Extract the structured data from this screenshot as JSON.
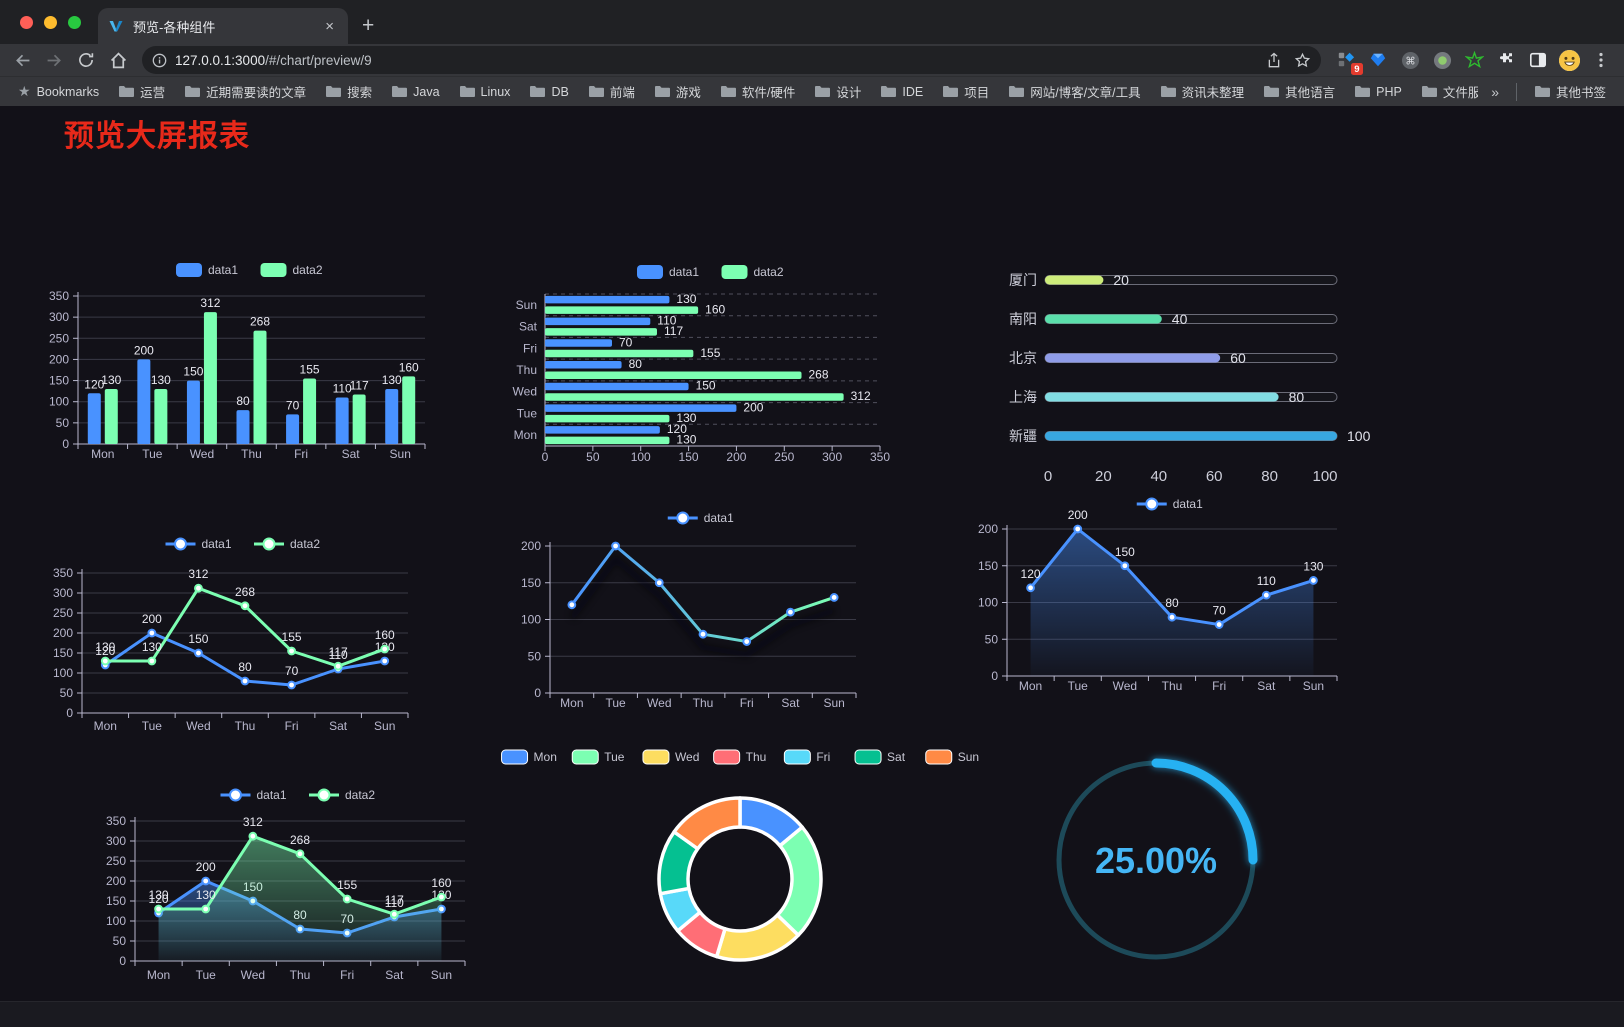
{
  "browser": {
    "tab_title": "预览-各种组件",
    "tab_close_glyph": "×",
    "new_tab_glyph": "+",
    "url_host": "127.0.0.1:3000",
    "url_path": "/#/chart/preview/9",
    "extension_badge": "9",
    "bookmarks_root_label": "Bookmarks",
    "bookmark_folders": [
      "运营",
      "近期需要读的文章",
      "搜索",
      "Java",
      "Linux",
      "DB",
      "前端",
      "游戏",
      "软件/硬件",
      "设计",
      "IDE",
      "项目",
      "网站/博客/文章/工具",
      "资讯未整理",
      "其他语言",
      "PHP",
      "文件服务器"
    ],
    "overflow_chevron": "»",
    "other_bookmarks_label": "其他书签"
  },
  "page": {
    "title": "预览大屏报表",
    "title_color": "#e8291a"
  },
  "chart_data": [
    {
      "id": "grouped-bar",
      "type": "bar",
      "categories": [
        "Mon",
        "Tue",
        "Wed",
        "Thu",
        "Fri",
        "Sat",
        "Sun"
      ],
      "series": [
        {
          "name": "data1",
          "color": "#4992ff",
          "values": [
            120,
            200,
            150,
            80,
            70,
            110,
            130
          ]
        },
        {
          "name": "data2",
          "color": "#7cffb2",
          "values": [
            130,
            130,
            312,
            268,
            155,
            117,
            160
          ]
        }
      ],
      "ylim": [
        0,
        350
      ],
      "ytick": 50,
      "value_labels": true,
      "legend_position": "top",
      "grid": true
    },
    {
      "id": "horizontal-bar",
      "type": "bar-horizontal",
      "categories": [
        "Mon",
        "Tue",
        "Wed",
        "Thu",
        "Fri",
        "Sat",
        "Sun"
      ],
      "series": [
        {
          "name": "data1",
          "color": "#4992ff",
          "values": [
            120,
            200,
            150,
            80,
            70,
            110,
            130
          ]
        },
        {
          "name": "data2",
          "color": "#7cffb2",
          "values": [
            130,
            130,
            312,
            268,
            155,
            117,
            160
          ]
        }
      ],
      "xlim": [
        0,
        350
      ],
      "xtick": 50,
      "value_labels": true,
      "legend_position": "top",
      "grid": true
    },
    {
      "id": "city-progress",
      "type": "progress-bars",
      "items": [
        {
          "label": "厦门",
          "value": 20,
          "color": "#cdec7a"
        },
        {
          "label": "南阳",
          "value": 40,
          "color": "#5bdfab"
        },
        {
          "label": "北京",
          "value": 60,
          "color": "#8f9ce8"
        },
        {
          "label": "上海",
          "value": 80,
          "color": "#82dde3"
        },
        {
          "label": "新疆",
          "value": 100,
          "color": "#38a7e0"
        }
      ],
      "xlim": [
        0,
        100
      ],
      "xticks": [
        0,
        20,
        40,
        60,
        80,
        100
      ]
    },
    {
      "id": "two-line",
      "type": "line",
      "categories": [
        "Mon",
        "Tue",
        "Wed",
        "Thu",
        "Fri",
        "Sat",
        "Sun"
      ],
      "series": [
        {
          "name": "data1",
          "color": "#4992ff",
          "values": [
            120,
            200,
            150,
            80,
            70,
            110,
            130
          ]
        },
        {
          "name": "data2",
          "color": "#7cffb2",
          "values": [
            130,
            130,
            312,
            268,
            155,
            117,
            160
          ]
        }
      ],
      "ylim": [
        0,
        350
      ],
      "ytick": 50,
      "value_labels": true,
      "legend_position": "top",
      "grid": true
    },
    {
      "id": "gradient-line",
      "type": "line",
      "categories": [
        "Mon",
        "Tue",
        "Wed",
        "Thu",
        "Fri",
        "Sat",
        "Sun"
      ],
      "series": [
        {
          "name": "data1",
          "color": "#4992ff",
          "gradient": [
            "#4992ff",
            "#7cffb2"
          ],
          "values": [
            120,
            200,
            150,
            80,
            70,
            110,
            130
          ],
          "shadow": true
        }
      ],
      "ylim": [
        0,
        200
      ],
      "ytick": 50,
      "value_labels": false,
      "legend_position": "top",
      "grid": true
    },
    {
      "id": "area-line",
      "type": "line",
      "categories": [
        "Mon",
        "Tue",
        "Wed",
        "Thu",
        "Fri",
        "Sat",
        "Sun"
      ],
      "series": [
        {
          "name": "data1",
          "color": "#4992ff",
          "values": [
            120,
            200,
            150,
            80,
            70,
            110,
            130
          ],
          "area": true
        }
      ],
      "ylim": [
        0,
        200
      ],
      "ytick": 50,
      "value_labels": true,
      "legend_position": "top",
      "grid": true
    },
    {
      "id": "two-area-line",
      "type": "line",
      "categories": [
        "Mon",
        "Tue",
        "Wed",
        "Thu",
        "Fri",
        "Sat",
        "Sun"
      ],
      "series": [
        {
          "name": "data1",
          "color": "#4992ff",
          "values": [
            120,
            200,
            150,
            80,
            70,
            110,
            130
          ],
          "area": true
        },
        {
          "name": "data2",
          "color": "#7cffb2",
          "values": [
            130,
            130,
            312,
            268,
            155,
            117,
            160
          ],
          "area": true
        }
      ],
      "ylim": [
        0,
        350
      ],
      "ytick": 50,
      "value_labels": true,
      "legend_position": "top",
      "grid": true
    },
    {
      "id": "week-donut",
      "type": "pie",
      "categories": [
        "Mon",
        "Tue",
        "Wed",
        "Thu",
        "Fri",
        "Sat",
        "Sun"
      ],
      "values": [
        120,
        200,
        150,
        80,
        70,
        110,
        130
      ],
      "colors": [
        "#4992ff",
        "#7cffb2",
        "#fddd60",
        "#ff6e76",
        "#58d9f9",
        "#05c091",
        "#ff8a45"
      ],
      "legend_position": "top",
      "inner_radius": 52,
      "outer_radius": 81,
      "border_color": "#ffffff"
    },
    {
      "id": "percent-gauge",
      "type": "gauge",
      "value": 25,
      "display": "25.00%",
      "color": "#28b1f2",
      "track_color": "#1d4a59",
      "text_color": "#45b6f5"
    }
  ]
}
